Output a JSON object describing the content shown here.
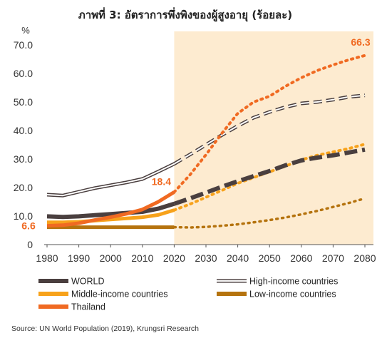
{
  "title": "ภาพที่ 3: อัตราการพึ่งพิงของผู้สูงอายุ (ร้อยละ)",
  "unit_label": "%",
  "source": "Source: UN World Population (2019), Krungsri Research",
  "colors": {
    "world": "#4a3f3f",
    "high_income": "#4a3f3f",
    "middle_income": "#f7a21b",
    "low_income": "#b5730e",
    "thailand": "#f06a22",
    "projection_bg": "#fdebd0",
    "axis": "#555555"
  },
  "chart_data": {
    "type": "line",
    "title": "ภาพที่ 3: อัตราการพึ่งพิงของผู้สูงอายุ (ร้อยละ)",
    "ylabel": "%",
    "xlim": [
      1980,
      2080
    ],
    "ylim": [
      0,
      70
    ],
    "x_ticks": [
      1980,
      1990,
      2000,
      2010,
      2020,
      2030,
      2040,
      2050,
      2060,
      2070,
      2080
    ],
    "y_ticks": [
      "0",
      "10.0",
      "20.0",
      "30.0",
      "40.0",
      "50.0",
      "60.0",
      "70.0"
    ],
    "y_tick_values": [
      0,
      10,
      20,
      30,
      40,
      50,
      60,
      70
    ],
    "projection_shading_from": 2020,
    "legend_position": "bottom",
    "series": [
      {
        "key": "world",
        "name": "WORLD",
        "historical": [
          [
            1980,
            9.9
          ],
          [
            1985,
            9.7
          ],
          [
            1990,
            9.9
          ],
          [
            1995,
            10.3
          ],
          [
            2000,
            10.7
          ],
          [
            2005,
            11.1
          ],
          [
            2010,
            11.5
          ],
          [
            2015,
            12.6
          ],
          [
            2020,
            14.3
          ]
        ],
        "projection": [
          [
            2020,
            14.3
          ],
          [
            2025,
            16.2
          ],
          [
            2030,
            18.2
          ],
          [
            2035,
            20.3
          ],
          [
            2040,
            22.2
          ],
          [
            2045,
            24.0
          ],
          [
            2050,
            25.8
          ],
          [
            2055,
            27.8
          ],
          [
            2060,
            29.5
          ],
          [
            2065,
            30.5
          ],
          [
            2070,
            31.3
          ],
          [
            2075,
            32.3
          ],
          [
            2080,
            33.3
          ]
        ]
      },
      {
        "key": "high_income",
        "name": "High-income countries",
        "historical": [
          [
            1980,
            17.5
          ],
          [
            1985,
            17.2
          ],
          [
            1990,
            18.5
          ],
          [
            1995,
            19.8
          ],
          [
            2000,
            20.8
          ],
          [
            2005,
            21.8
          ],
          [
            2010,
            23.0
          ],
          [
            2015,
            25.6
          ],
          [
            2020,
            28.3
          ]
        ],
        "projection": [
          [
            2020,
            28.3
          ],
          [
            2025,
            31.6
          ],
          [
            2030,
            35.0
          ],
          [
            2035,
            38.4
          ],
          [
            2040,
            41.6
          ],
          [
            2045,
            44.5
          ],
          [
            2050,
            46.5
          ],
          [
            2055,
            48.2
          ],
          [
            2060,
            49.5
          ],
          [
            2065,
            50.0
          ],
          [
            2070,
            50.8
          ],
          [
            2075,
            51.8
          ],
          [
            2080,
            52.3
          ]
        ]
      },
      {
        "key": "middle_income",
        "name": "Middle-income countries",
        "historical": [
          [
            1980,
            7.8
          ],
          [
            1985,
            7.8
          ],
          [
            1990,
            8.0
          ],
          [
            1995,
            8.4
          ],
          [
            2000,
            8.8
          ],
          [
            2005,
            9.2
          ],
          [
            2010,
            9.6
          ],
          [
            2015,
            10.4
          ],
          [
            2020,
            12.1
          ]
        ],
        "projection": [
          [
            2020,
            12.1
          ],
          [
            2025,
            14.2
          ],
          [
            2030,
            16.6
          ],
          [
            2035,
            19.0
          ],
          [
            2040,
            21.5
          ],
          [
            2045,
            23.5
          ],
          [
            2050,
            25.5
          ],
          [
            2055,
            27.5
          ],
          [
            2060,
            29.7
          ],
          [
            2065,
            31.3
          ],
          [
            2070,
            32.5
          ],
          [
            2075,
            33.7
          ],
          [
            2080,
            35.2
          ]
        ]
      },
      {
        "key": "low_income",
        "name": "Low-income countries",
        "historical": [
          [
            1980,
            6.1
          ],
          [
            1985,
            6.1
          ],
          [
            1990,
            6.1
          ],
          [
            1995,
            6.1
          ],
          [
            2000,
            6.1
          ],
          [
            2005,
            6.1
          ],
          [
            2010,
            6.1
          ],
          [
            2015,
            6.1
          ],
          [
            2020,
            6.1
          ]
        ],
        "projection": [
          [
            2020,
            6.1
          ],
          [
            2025,
            6.0
          ],
          [
            2030,
            6.2
          ],
          [
            2035,
            6.6
          ],
          [
            2040,
            7.1
          ],
          [
            2045,
            7.8
          ],
          [
            2050,
            8.6
          ],
          [
            2055,
            9.5
          ],
          [
            2060,
            10.6
          ],
          [
            2065,
            11.8
          ],
          [
            2070,
            13.2
          ],
          [
            2075,
            14.6
          ],
          [
            2080,
            16.2
          ]
        ]
      },
      {
        "key": "thailand",
        "name": "Thailand",
        "historical": [
          [
            1980,
            6.6
          ],
          [
            1985,
            6.8
          ],
          [
            1990,
            7.5
          ],
          [
            1995,
            8.6
          ],
          [
            2000,
            9.6
          ],
          [
            2005,
            10.8
          ],
          [
            2010,
            12.3
          ],
          [
            2015,
            15.0
          ],
          [
            2020,
            18.4
          ]
        ],
        "projection": [
          [
            2020,
            18.4
          ],
          [
            2025,
            24.5
          ],
          [
            2030,
            31.5
          ],
          [
            2035,
            39.0
          ],
          [
            2040,
            46.0
          ],
          [
            2045,
            50.0
          ],
          [
            2050,
            52.0
          ],
          [
            2055,
            55.5
          ],
          [
            2060,
            58.5
          ],
          [
            2065,
            61.0
          ],
          [
            2070,
            63.0
          ],
          [
            2075,
            64.8
          ],
          [
            2080,
            66.3
          ]
        ]
      }
    ],
    "data_labels": [
      {
        "series": "thailand",
        "x": 1980,
        "y": 6.6,
        "text": "6.6"
      },
      {
        "series": "thailand",
        "x": 2020,
        "y": 18.4,
        "text": "18.4"
      },
      {
        "series": "thailand",
        "x": 2080,
        "y": 66.3,
        "text": "66.3"
      }
    ]
  }
}
